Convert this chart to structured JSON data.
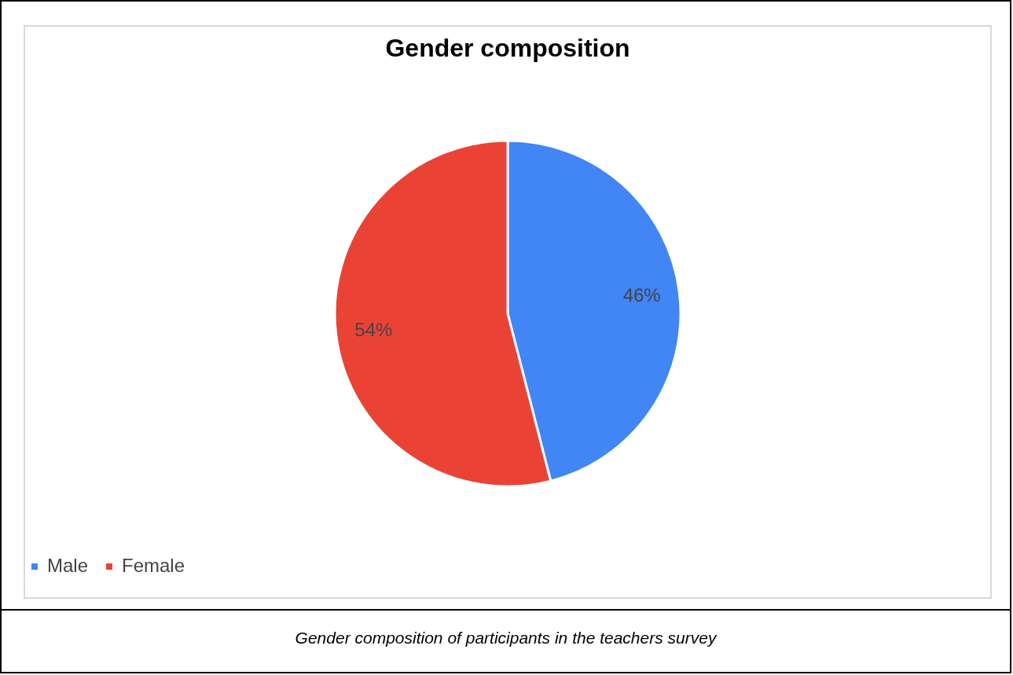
{
  "chart_data": {
    "type": "pie",
    "title": "Gender composition",
    "categories": [
      "Male",
      "Female"
    ],
    "values": [
      46,
      54
    ],
    "colors": [
      "#4285f4",
      "#ea4335"
    ],
    "value_labels": [
      "46%",
      "54%"
    ],
    "legend": "bottom",
    "annotations": [
      "Gender composition of participants in the teachers survey"
    ]
  }
}
